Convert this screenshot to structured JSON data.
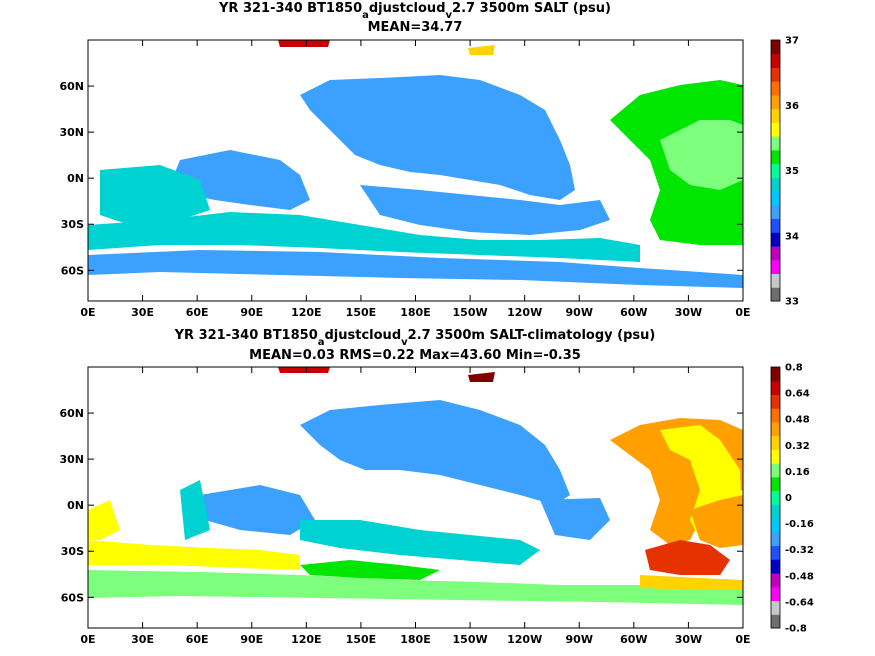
{
  "chart_data": [
    {
      "type": "heatmap",
      "title": {
        "pre": "YR 321-340 BT1850",
        "sub1": "a",
        "mid": "djustcloud",
        "sub2": "v",
        "post": "2.7 3500m SALT (psu)"
      },
      "subtitle": "MEAN=34.77",
      "x_ticks": [
        "0E",
        "30E",
        "60E",
        "90E",
        "120E",
        "150E",
        "180E",
        "150W",
        "120W",
        "90W",
        "60W",
        "30W",
        "0E"
      ],
      "y_ticks": [
        "60N",
        "30N",
        "0N",
        "30S",
        "60S"
      ],
      "y_tick_values": [
        60,
        30,
        0,
        -30,
        -60
      ],
      "xlim": [
        0,
        360
      ],
      "ylim": [
        -80,
        90
      ],
      "colorbar": {
        "labels": [
          "37",
          "36",
          "35",
          "34",
          "33"
        ],
        "label_values": [
          37,
          36,
          35,
          34,
          33
        ],
        "range": [
          33,
          37
        ],
        "colors": [
          "#6e6e6e",
          "#c8c8c8",
          "#ff00ff",
          "#be00be",
          "#0000c8",
          "#1e50ff",
          "#3ca0ff",
          "#00c8ff",
          "#00d2d2",
          "#00ff96",
          "#00e600",
          "#7dff7d",
          "#ffff00",
          "#ffd200",
          "#ffa000",
          "#ff6e00",
          "#e63200",
          "#c80000",
          "#800000"
        ]
      }
    },
    {
      "type": "heatmap",
      "title": {
        "pre": "YR 321-340 BT1850",
        "sub1": "a",
        "mid": "djustcloud",
        "sub2": "v",
        "post": "2.7 3500m SALT-climatology (psu)"
      },
      "subtitle": "MEAN=0.03   RMS=0.22   Max=43.60   Min=-0.35",
      "x_ticks": [
        "0E",
        "30E",
        "60E",
        "90E",
        "120E",
        "150E",
        "180E",
        "150W",
        "120W",
        "90W",
        "60W",
        "30W",
        "0E"
      ],
      "y_ticks": [
        "60N",
        "30N",
        "0N",
        "30S",
        "60S"
      ],
      "y_tick_values": [
        60,
        30,
        0,
        -30,
        -60
      ],
      "xlim": [
        0,
        360
      ],
      "ylim": [
        -80,
        90
      ],
      "colorbar": {
        "labels": [
          "0.8",
          "0.64",
          "0.48",
          "0.32",
          "0.16",
          "0",
          "-0.16",
          "-0.32",
          "-0.48",
          "-0.64",
          "-0.8"
        ],
        "label_values": [
          0.8,
          0.64,
          0.48,
          0.32,
          0.16,
          0,
          -0.16,
          -0.32,
          -0.48,
          -0.64,
          -0.8
        ],
        "range": [
          -0.8,
          0.8
        ],
        "colors": [
          "#6e6e6e",
          "#c8c8c8",
          "#ff00ff",
          "#be00be",
          "#0000c8",
          "#1e50ff",
          "#3ca0ff",
          "#00c8ff",
          "#00d2d2",
          "#00ff96",
          "#00e600",
          "#7dff7d",
          "#ffff00",
          "#ffd200",
          "#ffa000",
          "#ff6e00",
          "#e63200",
          "#c80000",
          "#800000"
        ]
      }
    }
  ]
}
